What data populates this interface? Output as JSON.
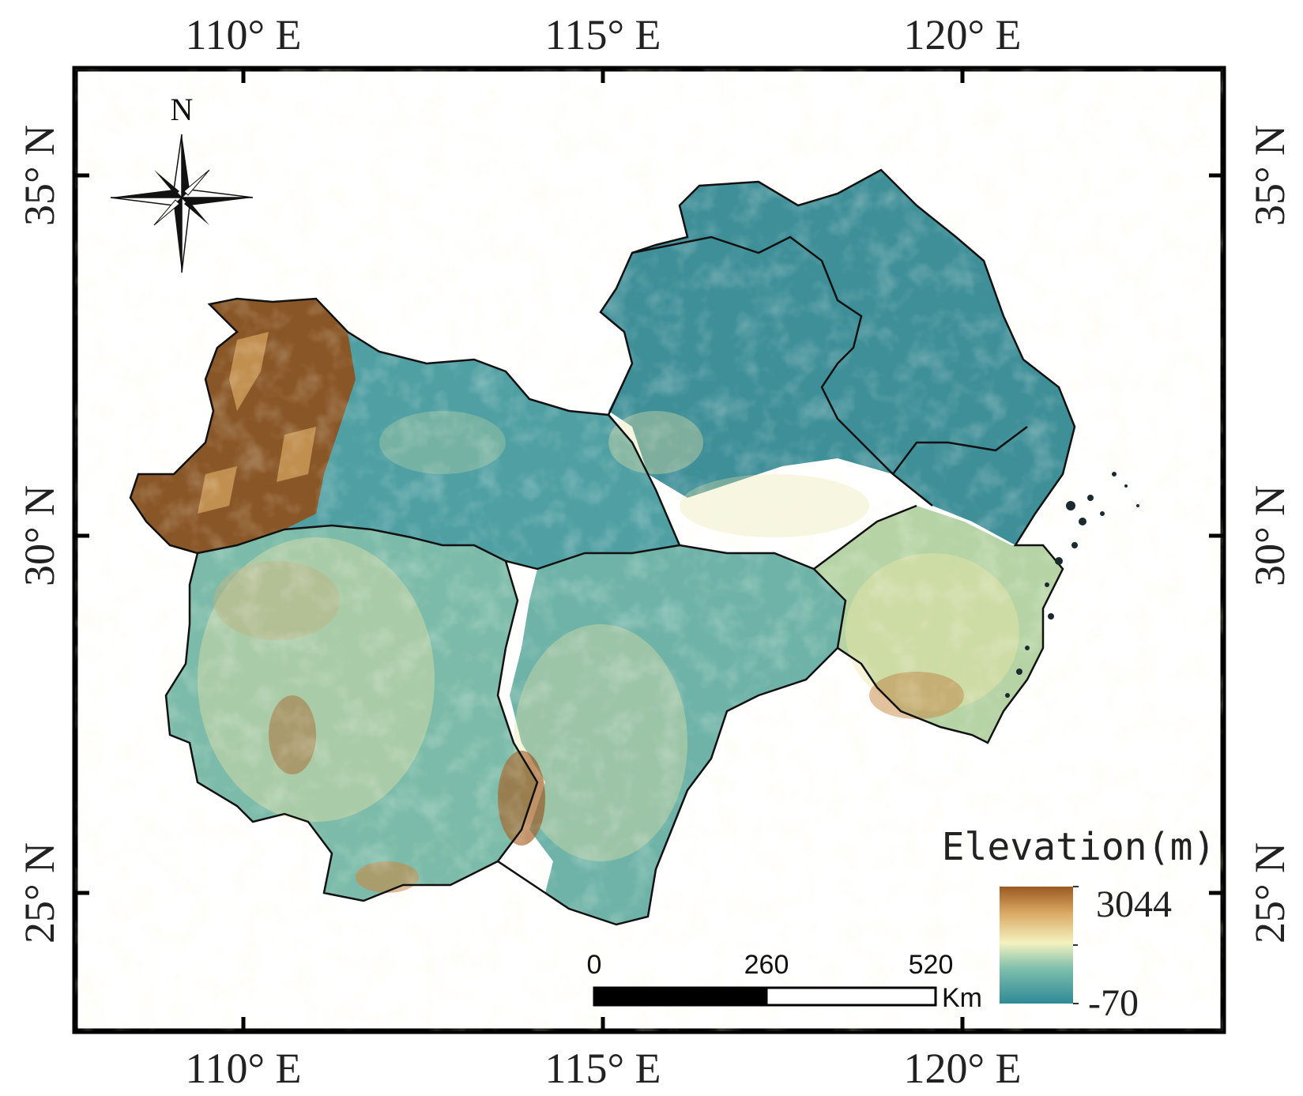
{
  "axes": {
    "lon_ticks": [
      "110° E",
      "115° E",
      "120° E"
    ],
    "lat_ticks": [
      "35° N",
      "30° N",
      "25° N"
    ]
  },
  "north_arrow": {
    "label": "N",
    "icon": "north-arrow-icon"
  },
  "scale_bar": {
    "labels": [
      "0",
      "260",
      "520"
    ],
    "unit": "Km"
  },
  "legend": {
    "title": "Elevation(m)",
    "max_label": "3044",
    "min_label": "-70",
    "colors": [
      "#2f8a96",
      "#6fb7a9",
      "#f2f1b8",
      "#d8a863",
      "#9a5a22"
    ]
  },
  "colors": {
    "lowland": "#3e8f99",
    "plain": "#5aa9a6",
    "hills": "#e9e4a6",
    "highland": "#c88a47",
    "mountain": "#8e4f1c",
    "border": "#111111"
  }
}
